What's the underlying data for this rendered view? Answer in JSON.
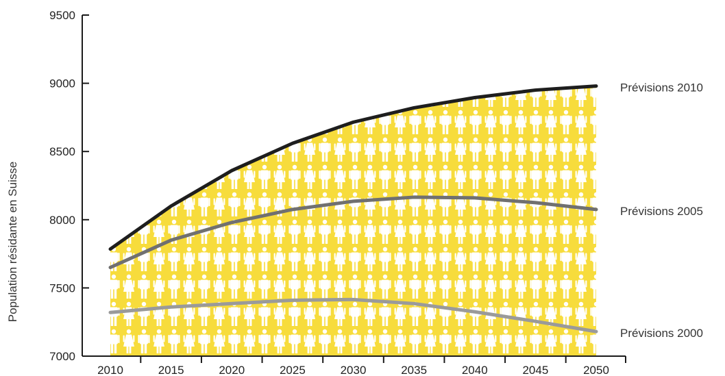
{
  "chart_data": {
    "type": "line",
    "ylabel": "Population résidante en Suisse",
    "xlabel": "",
    "x": [
      2010,
      2015,
      2020,
      2025,
      2030,
      2035,
      2040,
      2045,
      2050
    ],
    "x_tick_labels": [
      "2010",
      "2015",
      "2020",
      "2025",
      "2030",
      "2035",
      "2040",
      "2045",
      "2050"
    ],
    "y_ticks": [
      7000,
      7500,
      8000,
      8500,
      9000,
      9500
    ],
    "y_tick_labels": [
      "7000",
      "7500",
      "8000",
      "8500",
      "9000",
      "9500"
    ],
    "ylim": [
      7000,
      9500
    ],
    "xlim": [
      2010,
      2050
    ],
    "grid": false,
    "legend": "line-end labels",
    "fill": {
      "under_series": 0,
      "color": "#f7dc3c",
      "pattern": "person-icons",
      "pattern_color": "#ffffff"
    },
    "series": [
      {
        "name": "Prévisions 2010",
        "color": "#1e1e1e",
        "values": [
          7785,
          8100,
          8360,
          8560,
          8715,
          8820,
          8895,
          8950,
          8980
        ]
      },
      {
        "name": "Prévisions 2005",
        "color": "#707070",
        "values": [
          7650,
          7850,
          7980,
          8075,
          8135,
          8165,
          8160,
          8125,
          8075
        ]
      },
      {
        "name": "Prévisions 2000",
        "color": "#9a9a9a",
        "values": [
          7320,
          7360,
          7385,
          7410,
          7415,
          7385,
          7325,
          7255,
          7180
        ]
      }
    ]
  }
}
